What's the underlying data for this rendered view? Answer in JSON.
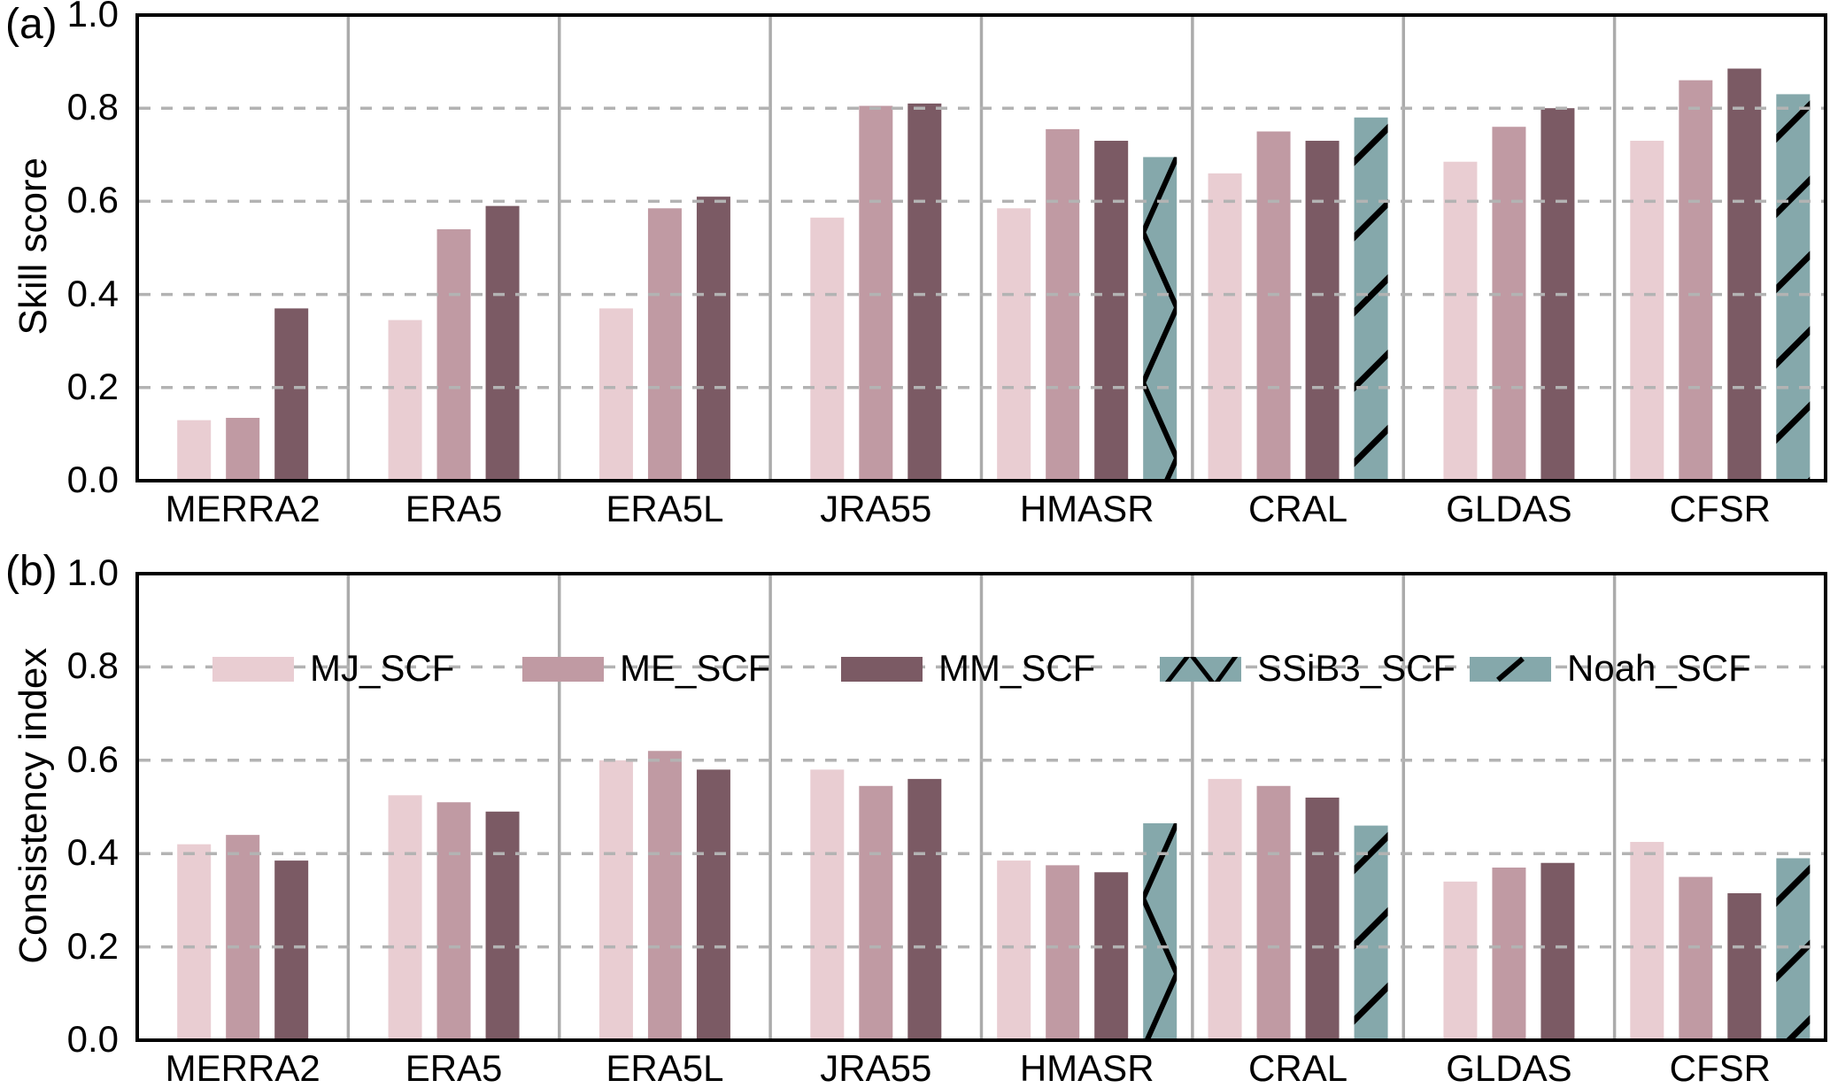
{
  "figure": {
    "background": "#ffffff",
    "panels": [
      {
        "letter": "(a)",
        "ylabel": "Skill score"
      },
      {
        "letter": "(b)",
        "ylabel": "Consistency index"
      }
    ],
    "colors": {
      "spine": "#000000",
      "separator": "#ababab",
      "gridline": "#b3b3b3",
      "text": "#000000"
    }
  },
  "legend": {
    "entries": [
      {
        "label": "MJ_SCF",
        "color": "#e9cdd2",
        "hatch": "none",
        "hatch_color": "#000000"
      },
      {
        "label": "ME_SCF",
        "color": "#c09aa3",
        "hatch": "none",
        "hatch_color": "#000000"
      },
      {
        "label": "MM_SCF",
        "color": "#7b5a64",
        "hatch": "none",
        "hatch_color": "#000000"
      },
      {
        "label": "SSiB3_SCF",
        "color": "#85a8ab",
        "hatch": "zigzag",
        "hatch_color": "#000000"
      },
      {
        "label": "Noah_SCF",
        "color": "#85a8ab",
        "hatch": "diagonal",
        "hatch_color": "#000000"
      }
    ]
  },
  "chart_data": [
    {
      "type": "bar",
      "panel": "(a)",
      "title": "",
      "xlabel": "",
      "ylabel": "Skill score",
      "ylim": [
        0,
        1
      ],
      "yticks": [
        "0.0",
        "0.2",
        "0.4",
        "0.6",
        "0.8",
        "1.0"
      ],
      "grid": "horizontal dashed at 0.2 steps, vertical solid group separators",
      "legend_position": "none",
      "categories": [
        "MERRA2",
        "ERA5",
        "ERA5L",
        "JRA55",
        "HMASR",
        "CRAL",
        "GLDAS",
        "CFSR"
      ],
      "series": [
        {
          "name": "MJ_SCF",
          "values": [
            0.13,
            0.345,
            0.37,
            0.565,
            0.585,
            0.66,
            0.685,
            0.73
          ]
        },
        {
          "name": "ME_SCF",
          "values": [
            0.135,
            0.54,
            0.585,
            0.805,
            0.755,
            0.75,
            0.76,
            0.86
          ]
        },
        {
          "name": "MM_SCF",
          "values": [
            0.37,
            0.59,
            0.61,
            0.81,
            0.73,
            0.73,
            0.8,
            0.885
          ]
        },
        {
          "name": "SSiB3_SCF",
          "values": [
            null,
            null,
            null,
            null,
            0.695,
            null,
            null,
            null
          ]
        },
        {
          "name": "Noah_SCF",
          "values": [
            null,
            null,
            null,
            null,
            null,
            0.78,
            null,
            0.83
          ]
        }
      ]
    },
    {
      "type": "bar",
      "panel": "(b)",
      "title": "",
      "xlabel": "",
      "ylabel": "Consistency index",
      "ylim": [
        0,
        1
      ],
      "yticks": [
        "0.0",
        "0.2",
        "0.4",
        "0.6",
        "0.8",
        "1.0"
      ],
      "grid": "horizontal dashed at 0.2 steps, vertical solid group separators",
      "legend_position": "inside top, row at y=0.8",
      "categories": [
        "MERRA2",
        "ERA5",
        "ERA5L",
        "JRA55",
        "HMASR",
        "CRAL",
        "GLDAS",
        "CFSR"
      ],
      "series": [
        {
          "name": "MJ_SCF",
          "values": [
            0.42,
            0.525,
            0.6,
            0.58,
            0.385,
            0.56,
            0.34,
            0.425
          ]
        },
        {
          "name": "ME_SCF",
          "values": [
            0.44,
            0.51,
            0.62,
            0.545,
            0.375,
            0.545,
            0.37,
            0.35
          ]
        },
        {
          "name": "MM_SCF",
          "values": [
            0.385,
            0.49,
            0.58,
            0.56,
            0.36,
            0.52,
            0.38,
            0.315
          ]
        },
        {
          "name": "SSiB3_SCF",
          "values": [
            null,
            null,
            null,
            null,
            0.465,
            null,
            null,
            null
          ]
        },
        {
          "name": "Noah_SCF",
          "values": [
            null,
            null,
            null,
            null,
            null,
            0.46,
            null,
            0.39
          ]
        }
      ]
    }
  ]
}
